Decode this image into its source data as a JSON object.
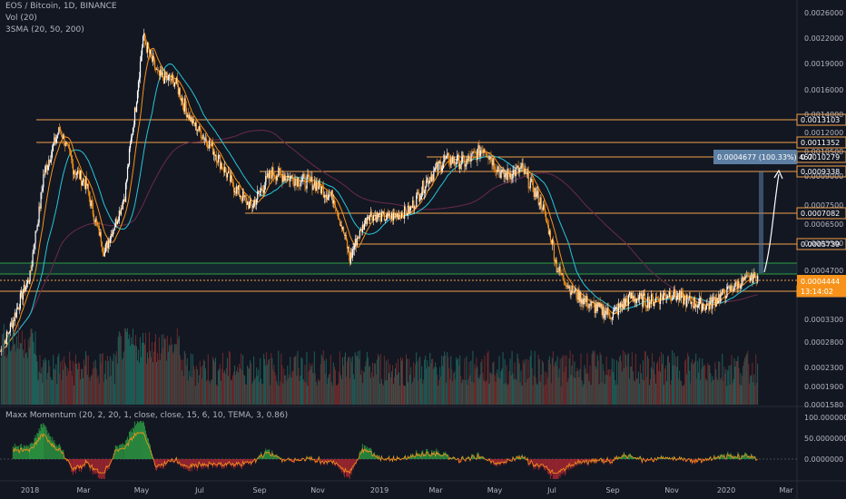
{
  "legend": {
    "symbol": "EOS / Bitcoin, 1D, BINANCE",
    "vol": "Vol (20)",
    "sma": "3SMA (20, 50, 200)",
    "indicator": "Maxx Momentum (20, 2, 20, 1, close, close, 15, 6, 10, TEMA, 3, 0.86)"
  },
  "price_axis": {
    "labels": [
      "0.0026000",
      "0.0022000",
      "0.0019000",
      "0.0016000",
      "0.0014000",
      "0.0012000",
      "0.0010500",
      "0.0009000",
      "0.0007500",
      "0.0006500",
      "0.0005500",
      "0.0004700",
      "0.0003900",
      "0.0003300",
      "0.0002800",
      "0.0002300",
      "0.0001900",
      "0.0001580"
    ]
  },
  "levels": [
    {
      "label": "0.0013103",
      "value": 0.0013103
    },
    {
      "label": "0.0011352",
      "value": 0.0011352
    },
    {
      "label": "0.0010279",
      "value": 0.0010279
    },
    {
      "label": "0.0009338",
      "value": 0.0009338
    },
    {
      "label": "0.0007082",
      "value": 0.0007082
    },
    {
      "label": "0.0005739",
      "value": 0.0005739
    },
    {
      "label": "0.0004092",
      "value": 0.0004092
    }
  ],
  "current": {
    "price": "0.0004444",
    "countdown": "13:14:02"
  },
  "measure": {
    "text": "0.0004677 (100.33%) 467"
  },
  "time_axis": [
    "2018",
    "Mar",
    "May",
    "Jul",
    "Sep",
    "Nov",
    "2019",
    "Mar",
    "May",
    "Jul",
    "Sep",
    "Nov",
    "2020",
    "Mar"
  ],
  "indicator_axis": [
    "100.0000000",
    "50.0000000",
    "0.0000000"
  ],
  "colors": {
    "bg": "#131722",
    "level": "#f0a04b",
    "green_zone": "#26a69a",
    "candle_up": "#ffffff",
    "candle_down": "#f7931a",
    "sma_fast": "#f7931a",
    "sma_mid": "#26c6da",
    "sma_slow": "#6b2a4a",
    "vol_up": "#1e5f5a",
    "vol_down": "#6b2b2b",
    "measure": "#5d7fa3"
  },
  "chart_data": {
    "type": "line",
    "x": [
      "2017-12-01",
      "2018-01-01",
      "2018-01-15",
      "2018-02-01",
      "2018-02-15",
      "2018-03-01",
      "2018-03-20",
      "2018-04-10",
      "2018-04-29",
      "2018-05-15",
      "2018-06-01",
      "2018-06-20",
      "2018-07-10",
      "2018-08-01",
      "2018-08-20",
      "2018-09-10",
      "2018-10-01",
      "2018-10-25",
      "2018-11-15",
      "2018-12-01",
      "2018-12-20",
      "2019-01-10",
      "2019-02-01",
      "2019-02-20",
      "2019-03-10",
      "2019-04-01",
      "2019-04-20",
      "2019-05-10",
      "2019-05-30",
      "2019-06-20",
      "2019-07-05",
      "2019-07-20",
      "2019-08-10",
      "2019-09-01",
      "2019-09-20",
      "2019-10-10",
      "2019-11-01",
      "2019-11-20",
      "2019-12-10",
      "2020-01-01",
      "2020-01-15",
      "2020-01-31"
    ],
    "series": [
      {
        "values": [
          0.00026,
          0.00045,
          0.0009,
          0.00124,
          0.00095,
          0.00085,
          0.00052,
          0.0008,
          0.00222,
          0.00175,
          0.0017,
          0.0013,
          0.00108,
          0.00085,
          0.00074,
          0.00092,
          0.00089,
          0.00086,
          0.00078,
          0.0005,
          0.0007,
          0.00068,
          0.00072,
          0.00088,
          0.001,
          0.00098,
          0.00108,
          0.0009,
          0.00094,
          0.00075,
          0.00048,
          0.0004,
          0.00036,
          0.00034,
          0.00038,
          0.00037,
          0.00039,
          0.00037,
          0.00036,
          0.0004,
          0.00043,
          0.00045
        ]
      }
    ],
    "yscale": "log",
    "ylim": [
      0.000158,
      0.0026
    ]
  }
}
